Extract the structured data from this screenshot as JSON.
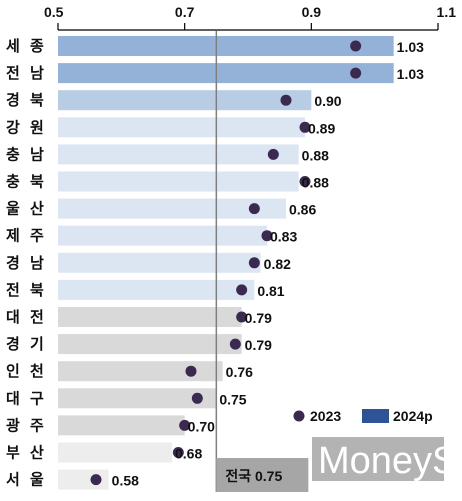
{
  "chart_data": {
    "type": "bar",
    "orientation": "horizontal",
    "xlim": [
      0.5,
      1.1
    ],
    "xticks": [
      "0.5",
      "0.7",
      "0.9",
      "1.1"
    ],
    "categories": [
      "세 종",
      "전 남",
      "경 북",
      "강 원",
      "충 남",
      "충 북",
      "울 산",
      "제 주",
      "경 남",
      "전 북",
      "대 전",
      "경 기",
      "인 천",
      "대 구",
      "광 주",
      "부 산",
      "서 울"
    ],
    "series": [
      {
        "name": "2024p",
        "values": [
          1.03,
          1.03,
          0.9,
          0.89,
          0.88,
          0.88,
          0.86,
          0.83,
          0.82,
          0.81,
          0.79,
          0.79,
          0.76,
          0.75,
          0.7,
          0.68,
          0.58
        ],
        "labels": [
          "1.03",
          "1.03",
          "0.90",
          "0.89",
          "0.88",
          "0.88",
          "0.86",
          "0.83",
          "0.82",
          "0.81",
          "0.79",
          "0.79",
          "0.76",
          "0.75",
          "0.70",
          "0.68",
          "0.58"
        ]
      },
      {
        "name": "2023",
        "values": [
          0.97,
          0.97,
          0.86,
          0.89,
          0.84,
          0.89,
          0.81,
          0.83,
          0.81,
          0.79,
          0.79,
          0.78,
          0.71,
          0.72,
          0.7,
          0.69,
          0.56
        ]
      }
    ],
    "reference_line": {
      "value": 0.75,
      "label": "전국 0.75"
    },
    "legend": {
      "position": "bottom-right",
      "items": [
        "2023",
        "2024p"
      ]
    },
    "colors": {
      "marker": "#3b2a4f",
      "legend_2024p": "#2f5496",
      "bar_strong": "#94b2d8",
      "bar_mid": "#b8cce4",
      "bar_light": "#dce6f2",
      "bar_gray": "#d9d9d9",
      "bar_pale": "#ededed",
      "ref_line": "#7f7f7f",
      "ref_box": "#a6a6a6"
    },
    "bar_color_keys": [
      "bar_strong",
      "bar_strong",
      "bar_mid",
      "bar_light",
      "bar_light",
      "bar_light",
      "bar_light",
      "bar_light",
      "bar_light",
      "bar_light",
      "bar_gray",
      "bar_gray",
      "bar_gray",
      "bar_gray",
      "bar_gray",
      "bar_pale",
      "bar_pale"
    ]
  },
  "watermark": "MoneyS"
}
